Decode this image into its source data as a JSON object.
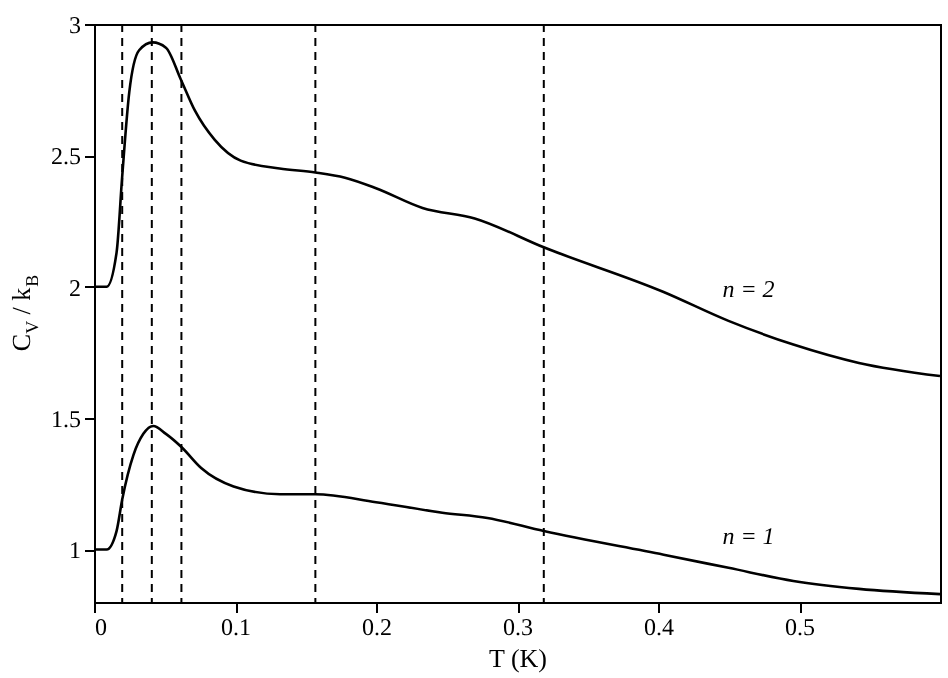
{
  "chart_data": {
    "type": "line",
    "xlabel": "T  (K)",
    "ylabel": "C$_{V}$ / k$_{B}$",
    "xlim": [
      0,
      0.6
    ],
    "ylim": [
      0.8,
      3
    ],
    "xticks": [
      0,
      0.1,
      0.2,
      0.3,
      0.4,
      0.5
    ],
    "yticks": [
      1,
      1.5,
      2,
      2.5,
      3
    ],
    "grid": false,
    "marker": "none",
    "line_style": "solid",
    "series": [
      {
        "name": "n = 2",
        "color": "#000000",
        "x": [
          0,
          0.009,
          0.016,
          0.02,
          0.025,
          0.032,
          0.0416,
          0.051,
          0.0615,
          0.0716,
          0.0855,
          0.104,
          0.1316,
          0.157,
          0.178,
          0.2,
          0.233,
          0.27,
          0.319,
          0.404,
          0.45,
          0.496,
          0.5425,
          0.6
        ],
        "values": [
          2.0,
          2.0,
          2.13,
          2.42,
          2.74,
          2.9,
          2.93,
          2.91,
          2.79,
          2.67,
          2.56,
          2.48,
          2.45,
          2.435,
          2.415,
          2.375,
          2.3,
          2.26,
          2.15,
          1.98,
          1.87,
          1.78,
          1.71,
          1.66
        ]
      },
      {
        "name": "n = 1",
        "color": "#000000",
        "x": [
          0,
          0.009,
          0.016,
          0.02,
          0.028,
          0.035,
          0.042,
          0.051,
          0.062,
          0.076,
          0.099,
          0.132,
          0.157,
          0.2,
          0.247,
          0.279,
          0.319,
          0.404,
          0.45,
          0.496,
          0.5425,
          0.6
        ],
        "values": [
          1.0,
          1.0,
          1.07,
          1.19,
          1.36,
          1.44,
          1.47,
          1.44,
          1.39,
          1.31,
          1.24,
          1.21,
          1.21,
          1.18,
          1.14,
          1.12,
          1.07,
          0.98,
          0.93,
          0.88,
          0.85,
          0.83
        ]
      }
    ],
    "ref_lines": [
      {
        "axis": "x",
        "value": 0.02,
        "color": "#000000",
        "line_style": "dashed"
      },
      {
        "axis": "x",
        "value": 0.041,
        "color": "#000000",
        "line_style": "dashed"
      },
      {
        "axis": "x",
        "value": 0.062,
        "color": "#000000",
        "line_style": "dashed"
      },
      {
        "axis": "x",
        "value": 0.157,
        "color": "#000000",
        "line_style": "dashed"
      },
      {
        "axis": "x",
        "value": 0.319,
        "color": "#000000",
        "line_style": "dashed"
      }
    ]
  }
}
